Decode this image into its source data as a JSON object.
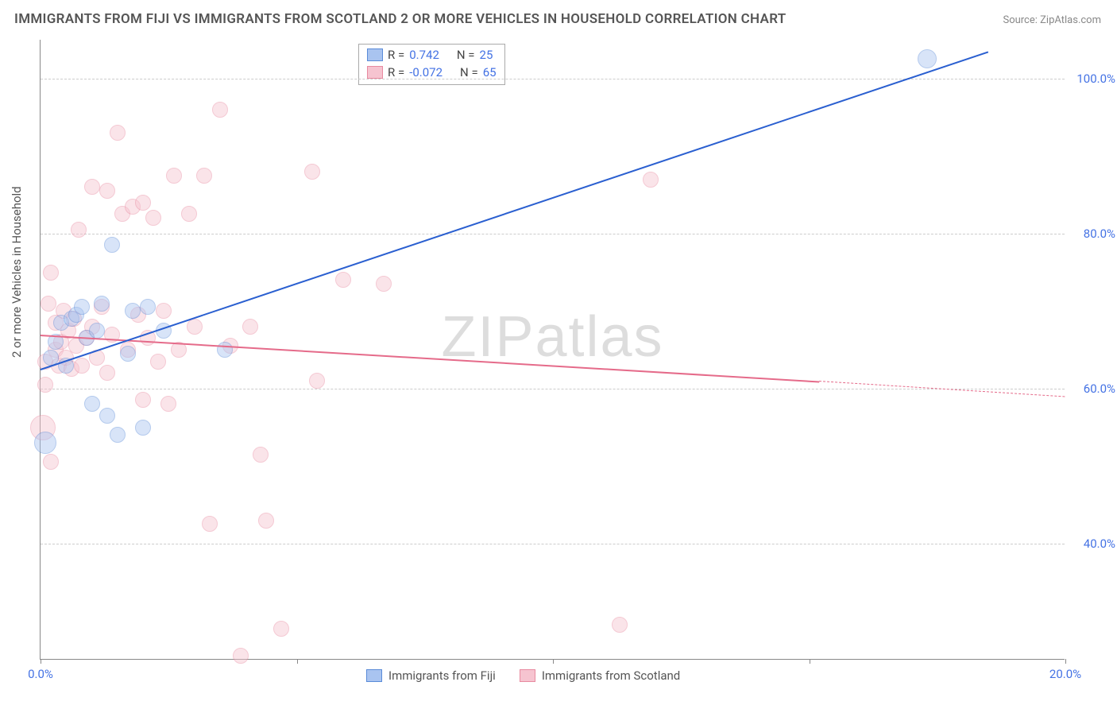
{
  "title": "IMMIGRANTS FROM FIJI VS IMMIGRANTS FROM SCOTLAND 2 OR MORE VEHICLES IN HOUSEHOLD CORRELATION CHART",
  "source": "Source: ZipAtlas.com",
  "watermark": "ZIPatlas",
  "y_axis_label": "2 or more Vehicles in Household",
  "chart": {
    "type": "scatter-with-regression",
    "background_color": "#ffffff",
    "grid_color": "#cccccc",
    "axis_color": "#888888",
    "xlim": [
      0,
      20
    ],
    "ylim": [
      25,
      105
    ],
    "x_ticks": [
      0,
      5,
      10,
      15,
      20
    ],
    "x_tick_labels": [
      "0.0%",
      "",
      "",
      "",
      "20.0%"
    ],
    "y_ticks": [
      40,
      60,
      80,
      100
    ],
    "y_tick_labels": [
      "40.0%",
      "60.0%",
      "80.0%",
      "100.0%"
    ],
    "marker_radius": 10,
    "marker_opacity": 0.45,
    "line_width": 2,
    "title_fontsize": 17,
    "label_fontsize": 15
  },
  "series": {
    "fiji": {
      "label": "Immigrants from Fiji",
      "color_fill": "#a9c4f0",
      "color_stroke": "#5a8bd8",
      "line_color": "#2a5fd0",
      "R": "0.742",
      "N": "25",
      "trend": {
        "x1": 0,
        "y1": 62.5,
        "x2": 18.5,
        "y2": 103.5
      },
      "points": [
        {
          "x": 0.1,
          "y": 53.0,
          "r": 14
        },
        {
          "x": 0.2,
          "y": 64.0,
          "r": 10
        },
        {
          "x": 0.3,
          "y": 66.0,
          "r": 10
        },
        {
          "x": 0.4,
          "y": 68.5,
          "r": 10
        },
        {
          "x": 0.5,
          "y": 63.0,
          "r": 10
        },
        {
          "x": 0.6,
          "y": 69.0,
          "r": 10
        },
        {
          "x": 0.7,
          "y": 69.5,
          "r": 10
        },
        {
          "x": 0.8,
          "y": 70.5,
          "r": 10
        },
        {
          "x": 0.9,
          "y": 66.5,
          "r": 10
        },
        {
          "x": 1.0,
          "y": 58.0,
          "r": 10
        },
        {
          "x": 1.1,
          "y": 67.5,
          "r": 10
        },
        {
          "x": 1.2,
          "y": 71.0,
          "r": 10
        },
        {
          "x": 1.3,
          "y": 56.5,
          "r": 10
        },
        {
          "x": 1.4,
          "y": 78.5,
          "r": 10
        },
        {
          "x": 1.5,
          "y": 54.0,
          "r": 10
        },
        {
          "x": 1.7,
          "y": 64.5,
          "r": 10
        },
        {
          "x": 1.8,
          "y": 70.0,
          "r": 10
        },
        {
          "x": 2.0,
          "y": 55.0,
          "r": 10
        },
        {
          "x": 2.1,
          "y": 70.5,
          "r": 10
        },
        {
          "x": 2.4,
          "y": 67.5,
          "r": 10
        },
        {
          "x": 3.6,
          "y": 65.0,
          "r": 10
        },
        {
          "x": 17.3,
          "y": 102.5,
          "r": 12
        }
      ]
    },
    "scotland": {
      "label": "Immigrants from Scotland",
      "color_fill": "#f6c4d0",
      "color_stroke": "#e88aa0",
      "line_color": "#e56b8a",
      "R": "-0.072",
      "N": "65",
      "trend_solid": {
        "x1": 0,
        "y1": 67.0,
        "x2": 15.2,
        "y2": 61.0
      },
      "trend_dash": {
        "x1": 15.2,
        "y1": 61.0,
        "x2": 20.0,
        "y2": 59.0
      },
      "points": [
        {
          "x": 0.05,
          "y": 55.0,
          "r": 16
        },
        {
          "x": 0.1,
          "y": 60.5,
          "r": 10
        },
        {
          "x": 0.1,
          "y": 63.5,
          "r": 10
        },
        {
          "x": 0.15,
          "y": 71.0,
          "r": 10
        },
        {
          "x": 0.2,
          "y": 75.0,
          "r": 10
        },
        {
          "x": 0.2,
          "y": 50.5,
          "r": 10
        },
        {
          "x": 0.3,
          "y": 65.0,
          "r": 10
        },
        {
          "x": 0.3,
          "y": 68.5,
          "r": 10
        },
        {
          "x": 0.35,
          "y": 63.0,
          "r": 10
        },
        {
          "x": 0.4,
          "y": 66.0,
          "r": 10
        },
        {
          "x": 0.45,
          "y": 70.0,
          "r": 10
        },
        {
          "x": 0.5,
          "y": 64.0,
          "r": 10
        },
        {
          "x": 0.55,
          "y": 67.5,
          "r": 10
        },
        {
          "x": 0.6,
          "y": 62.5,
          "r": 10
        },
        {
          "x": 0.65,
          "y": 69.0,
          "r": 10
        },
        {
          "x": 0.7,
          "y": 65.5,
          "r": 10
        },
        {
          "x": 0.75,
          "y": 80.5,
          "r": 10
        },
        {
          "x": 0.8,
          "y": 63.0,
          "r": 10
        },
        {
          "x": 0.9,
          "y": 66.5,
          "r": 10
        },
        {
          "x": 1.0,
          "y": 86.0,
          "r": 10
        },
        {
          "x": 1.0,
          "y": 68.0,
          "r": 10
        },
        {
          "x": 1.1,
          "y": 64.0,
          "r": 10
        },
        {
          "x": 1.2,
          "y": 70.5,
          "r": 10
        },
        {
          "x": 1.3,
          "y": 85.5,
          "r": 10
        },
        {
          "x": 1.3,
          "y": 62.0,
          "r": 10
        },
        {
          "x": 1.4,
          "y": 67.0,
          "r": 10
        },
        {
          "x": 1.5,
          "y": 93.0,
          "r": 10
        },
        {
          "x": 1.6,
          "y": 82.5,
          "r": 10
        },
        {
          "x": 1.7,
          "y": 65.0,
          "r": 10
        },
        {
          "x": 1.8,
          "y": 83.5,
          "r": 10
        },
        {
          "x": 1.9,
          "y": 69.5,
          "r": 10
        },
        {
          "x": 2.0,
          "y": 84.0,
          "r": 10
        },
        {
          "x": 2.0,
          "y": 58.5,
          "r": 10
        },
        {
          "x": 2.1,
          "y": 66.5,
          "r": 10
        },
        {
          "x": 2.2,
          "y": 82.0,
          "r": 10
        },
        {
          "x": 2.3,
          "y": 63.5,
          "r": 10
        },
        {
          "x": 2.4,
          "y": 70.0,
          "r": 10
        },
        {
          "x": 2.5,
          "y": 58.0,
          "r": 10
        },
        {
          "x": 2.6,
          "y": 87.5,
          "r": 10
        },
        {
          "x": 2.7,
          "y": 65.0,
          "r": 10
        },
        {
          "x": 2.9,
          "y": 82.5,
          "r": 10
        },
        {
          "x": 3.0,
          "y": 68.0,
          "r": 10
        },
        {
          "x": 3.2,
          "y": 87.5,
          "r": 10
        },
        {
          "x": 3.3,
          "y": 42.5,
          "r": 10
        },
        {
          "x": 3.5,
          "y": 96.0,
          "r": 10
        },
        {
          "x": 3.7,
          "y": 65.5,
          "r": 10
        },
        {
          "x": 3.9,
          "y": 25.5,
          "r": 10
        },
        {
          "x": 4.1,
          "y": 68.0,
          "r": 10
        },
        {
          "x": 4.3,
          "y": 51.5,
          "r": 10
        },
        {
          "x": 4.4,
          "y": 43.0,
          "r": 10
        },
        {
          "x": 4.7,
          "y": 29.0,
          "r": 10
        },
        {
          "x": 5.3,
          "y": 88.0,
          "r": 10
        },
        {
          "x": 5.4,
          "y": 61.0,
          "r": 10
        },
        {
          "x": 5.9,
          "y": 74.0,
          "r": 10
        },
        {
          "x": 6.7,
          "y": 73.5,
          "r": 10
        },
        {
          "x": 11.3,
          "y": 29.5,
          "r": 10
        },
        {
          "x": 11.9,
          "y": 87.0,
          "r": 10
        }
      ]
    }
  },
  "bottom_legend": [
    {
      "label": "Immigrants from Fiji",
      "fill": "#a9c4f0",
      "stroke": "#5a8bd8"
    },
    {
      "label": "Immigrants from Scotland",
      "fill": "#f6c4d0",
      "stroke": "#e88aa0"
    }
  ]
}
